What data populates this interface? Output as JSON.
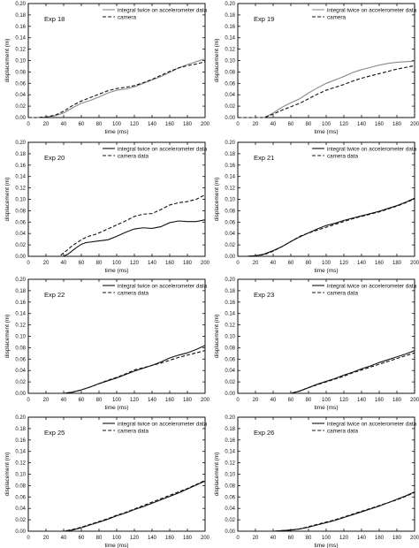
{
  "chart_data": [
    {
      "type": "line",
      "panel_label": "Exp 18",
      "xlabel": "time (ms)",
      "ylabel": "displacement (m)",
      "xlim": [
        0,
        200
      ],
      "ylim": [
        0,
        0.2
      ],
      "xticks": [
        "0",
        "20",
        "40",
        "60",
        "80",
        "100",
        "120",
        "140",
        "160",
        "180",
        "200"
      ],
      "yticks": [
        "0.00",
        "0.02",
        "0.04",
        "0.06",
        "0.08",
        "0.10",
        "0.12",
        "0.14",
        "0.16",
        "0.18",
        "0.20"
      ],
      "legend_position": "top-right",
      "grid": false,
      "series": [
        {
          "name": "integral twice on accelerometer data",
          "style": "solid",
          "color": "#8a8a8a",
          "x": [
            0,
            10,
            20,
            30,
            40,
            50,
            60,
            70,
            80,
            90,
            100,
            110,
            120,
            130,
            140,
            150,
            160,
            170,
            180,
            190,
            200
          ],
          "y": [
            0,
            0,
            0.001,
            0.003,
            0.008,
            0.017,
            0.025,
            0.03,
            0.036,
            0.043,
            0.048,
            0.05,
            0.054,
            0.06,
            0.066,
            0.072,
            0.079,
            0.087,
            0.093,
            0.098,
            0.103
          ]
        },
        {
          "name": "camera",
          "style": "dashed",
          "color": "#111111",
          "x": [
            0,
            10,
            20,
            30,
            40,
            50,
            60,
            70,
            80,
            90,
            100,
            110,
            120,
            130,
            140,
            150,
            160,
            170,
            180,
            190,
            200
          ],
          "y": [
            0,
            0,
            0.001,
            0.004,
            0.011,
            0.021,
            0.029,
            0.035,
            0.041,
            0.047,
            0.051,
            0.053,
            0.056,
            0.061,
            0.067,
            0.074,
            0.081,
            0.087,
            0.091,
            0.094,
            0.098
          ]
        }
      ]
    },
    {
      "type": "line",
      "panel_label": "Exp 19",
      "xlabel": "time (ms)",
      "ylabel": "displacement (m)",
      "xlim": [
        0,
        200
      ],
      "ylim": [
        0,
        0.2
      ],
      "xticks": [
        "0",
        "20",
        "40",
        "60",
        "80",
        "100",
        "120",
        "140",
        "160",
        "180",
        "200"
      ],
      "yticks": [
        "0.00",
        "0.02",
        "0.04",
        "0.06",
        "0.08",
        "0.10",
        "0.12",
        "0.14",
        "0.16",
        "0.18",
        "0.20"
      ],
      "legend_position": "top-right",
      "grid": false,
      "series": [
        {
          "name": "integral twice on accelerometer data",
          "style": "solid",
          "color": "#8a8a8a",
          "x": [
            0,
            10,
            20,
            30,
            40,
            50,
            60,
            70,
            80,
            90,
            100,
            110,
            120,
            130,
            140,
            150,
            160,
            170,
            180,
            190,
            200
          ],
          "y": [
            0,
            0,
            0,
            0,
            0.008,
            0.018,
            0.026,
            0.033,
            0.043,
            0.052,
            0.06,
            0.066,
            0.072,
            0.079,
            0.084,
            0.088,
            0.092,
            0.095,
            0.097,
            0.098,
            0.099
          ]
        },
        {
          "name": "camera",
          "style": "dashed",
          "color": "#111111",
          "x": [
            0,
            10,
            20,
            30,
            40,
            50,
            60,
            70,
            80,
            90,
            100,
            110,
            120,
            130,
            140,
            150,
            160,
            170,
            180,
            190,
            200
          ],
          "y": [
            0,
            0,
            0,
            0,
            0.006,
            0.013,
            0.019,
            0.025,
            0.033,
            0.041,
            0.048,
            0.053,
            0.058,
            0.064,
            0.069,
            0.073,
            0.077,
            0.081,
            0.085,
            0.088,
            0.091
          ]
        }
      ]
    },
    {
      "type": "line",
      "panel_label": "Exp 20",
      "xlabel": "time (ms)",
      "ylabel": "displacement (m)",
      "xlim": [
        0,
        200
      ],
      "ylim": [
        0,
        0.2
      ],
      "xticks": [
        "0",
        "20",
        "40",
        "60",
        "80",
        "100",
        "120",
        "140",
        "160",
        "180",
        "200"
      ],
      "yticks": [
        "0.00",
        "0.02",
        "0.04",
        "0.06",
        "0.08",
        "0.10",
        "0.12",
        "0.14",
        "0.16",
        "0.18",
        "0.20"
      ],
      "legend_position": "top-right",
      "grid": false,
      "series": [
        {
          "name": "integral twice on accelerometer data",
          "style": "solid",
          "color": "#111111",
          "x": [
            0,
            40,
            45,
            50,
            55,
            60,
            65,
            70,
            75,
            80,
            90,
            100,
            110,
            120,
            130,
            140,
            150,
            160,
            170,
            180,
            190,
            200
          ],
          "y": [
            0,
            0,
            0.004,
            0.01,
            0.016,
            0.021,
            0.024,
            0.025,
            0.026,
            0.027,
            0.029,
            0.035,
            0.042,
            0.048,
            0.05,
            0.049,
            0.052,
            0.059,
            0.062,
            0.061,
            0.061,
            0.064
          ]
        },
        {
          "name": "camera data",
          "style": "dashed",
          "color": "#111111",
          "x": [
            0,
            35,
            40,
            45,
            50,
            55,
            60,
            65,
            70,
            75,
            80,
            90,
            100,
            110,
            120,
            130,
            140,
            150,
            160,
            170,
            180,
            190,
            200
          ],
          "y": [
            0,
            0,
            0.006,
            0.012,
            0.019,
            0.024,
            0.029,
            0.033,
            0.036,
            0.038,
            0.041,
            0.048,
            0.055,
            0.062,
            0.07,
            0.074,
            0.075,
            0.082,
            0.09,
            0.094,
            0.096,
            0.1,
            0.108
          ]
        }
      ]
    },
    {
      "type": "line",
      "panel_label": "Exp 21",
      "xlabel": "time (ms)",
      "ylabel": "displacement (m)",
      "xlim": [
        0,
        200
      ],
      "ylim": [
        0,
        0.2
      ],
      "xticks": [
        "0",
        "20",
        "40",
        "60",
        "80",
        "100",
        "120",
        "140",
        "160",
        "180",
        "200"
      ],
      "yticks": [
        "0.00",
        "0.02",
        "0.04",
        "0.06",
        "0.08",
        "0.10",
        "0.12",
        "0.14",
        "0.16",
        "0.18",
        "0.20"
      ],
      "legend_position": "top-right",
      "grid": false,
      "series": [
        {
          "name": "integral twice on accelerometer data",
          "style": "solid",
          "color": "#111111",
          "x": [
            0,
            10,
            20,
            30,
            40,
            50,
            60,
            70,
            80,
            90,
            100,
            110,
            120,
            130,
            140,
            150,
            160,
            170,
            180,
            190,
            200
          ],
          "y": [
            0,
            0,
            0.001,
            0.004,
            0.01,
            0.017,
            0.026,
            0.034,
            0.041,
            0.048,
            0.054,
            0.058,
            0.063,
            0.067,
            0.071,
            0.075,
            0.079,
            0.084,
            0.089,
            0.095,
            0.102
          ]
        },
        {
          "name": "camera data",
          "style": "dashed",
          "color": "#111111",
          "x": [
            0,
            10,
            20,
            30,
            40,
            50,
            60,
            70,
            80,
            90,
            100,
            110,
            120,
            130,
            140,
            150,
            160,
            170,
            180,
            190,
            200
          ],
          "y": [
            0,
            0,
            0.001,
            0.003,
            0.009,
            0.017,
            0.026,
            0.035,
            0.041,
            0.046,
            0.051,
            0.056,
            0.061,
            0.066,
            0.07,
            0.074,
            0.078,
            0.083,
            0.088,
            0.094,
            0.101
          ]
        }
      ]
    },
    {
      "type": "line",
      "panel_label": "Exp 22",
      "xlabel": "time (ms)",
      "ylabel": "displacement (m)",
      "xlim": [
        0,
        200
      ],
      "ylim": [
        0,
        0.2
      ],
      "xticks": [
        "0",
        "20",
        "40",
        "60",
        "80",
        "100",
        "120",
        "140",
        "160",
        "180",
        "200"
      ],
      "yticks": [
        "0.00",
        "0.02",
        "0.04",
        "0.06",
        "0.08",
        "0.10",
        "0.12",
        "0.14",
        "0.16",
        "0.18",
        "0.20"
      ],
      "legend_position": "top-right",
      "grid": false,
      "series": [
        {
          "name": "integral twice on accelerometer data",
          "style": "solid",
          "color": "#111111",
          "x": [
            0,
            40,
            50,
            60,
            70,
            80,
            90,
            100,
            110,
            120,
            130,
            140,
            150,
            160,
            170,
            180,
            190,
            200
          ],
          "y": [
            0,
            0,
            0.002,
            0.006,
            0.011,
            0.017,
            0.022,
            0.027,
            0.033,
            0.039,
            0.044,
            0.049,
            0.055,
            0.062,
            0.067,
            0.071,
            0.077,
            0.084
          ]
        },
        {
          "name": "camera data",
          "style": "dashed",
          "color": "#111111",
          "x": [
            0,
            40,
            50,
            60,
            70,
            80,
            90,
            100,
            110,
            120,
            130,
            140,
            150,
            160,
            170,
            180,
            190,
            200
          ],
          "y": [
            0,
            0,
            0.002,
            0.006,
            0.011,
            0.017,
            0.023,
            0.028,
            0.034,
            0.041,
            0.045,
            0.049,
            0.053,
            0.058,
            0.063,
            0.067,
            0.071,
            0.075
          ]
        }
      ]
    },
    {
      "type": "line",
      "panel_label": "Exp 23",
      "xlabel": "time (ms)",
      "ylabel": "displacement (m)",
      "xlim": [
        0,
        200
      ],
      "ylim": [
        0,
        0.2
      ],
      "xticks": [
        "0",
        "20",
        "40",
        "60",
        "80",
        "100",
        "120",
        "140",
        "160",
        "180",
        "200"
      ],
      "yticks": [
        "0.00",
        "0.02",
        "0.04",
        "0.06",
        "0.08",
        "0.10",
        "0.12",
        "0.14",
        "0.16",
        "0.18",
        "0.20"
      ],
      "legend_position": "top-right",
      "grid": false,
      "series": [
        {
          "name": "integral twice on accelerometer data",
          "style": "solid",
          "color": "#111111",
          "x": [
            0,
            60,
            70,
            80,
            90,
            100,
            110,
            120,
            130,
            140,
            150,
            160,
            170,
            180,
            190,
            200
          ],
          "y": [
            0,
            0,
            0.004,
            0.01,
            0.016,
            0.021,
            0.026,
            0.032,
            0.037,
            0.043,
            0.048,
            0.054,
            0.059,
            0.064,
            0.069,
            0.075
          ]
        },
        {
          "name": "camera data",
          "style": "dashed",
          "color": "#111111",
          "x": [
            0,
            60,
            70,
            80,
            90,
            100,
            110,
            120,
            130,
            140,
            150,
            160,
            170,
            180,
            190,
            200
          ],
          "y": [
            0,
            0,
            0.004,
            0.01,
            0.015,
            0.02,
            0.025,
            0.03,
            0.036,
            0.041,
            0.046,
            0.051,
            0.056,
            0.061,
            0.066,
            0.071
          ]
        }
      ]
    },
    {
      "type": "line",
      "panel_label": "Exp 25",
      "xlabel": "time (ms)",
      "ylabel": "displacement (m)",
      "xlim": [
        0,
        200
      ],
      "ylim": [
        0,
        0.2
      ],
      "xticks": [
        "0",
        "20",
        "40",
        "60",
        "80",
        "100",
        "120",
        "140",
        "160",
        "180",
        "200"
      ],
      "yticks": [
        "0.00",
        "0.02",
        "0.04",
        "0.06",
        "0.08",
        "0.10",
        "0.12",
        "0.14",
        "0.16",
        "0.18",
        "0.20"
      ],
      "legend_position": "top-right",
      "grid": false,
      "series": [
        {
          "name": "integral twice on accelerometer data",
          "style": "solid",
          "color": "#111111",
          "x": [
            0,
            40,
            50,
            60,
            70,
            80,
            90,
            100,
            110,
            120,
            130,
            140,
            150,
            160,
            170,
            180,
            190,
            200
          ],
          "y": [
            0,
            0,
            0.002,
            0.006,
            0.011,
            0.016,
            0.021,
            0.027,
            0.032,
            0.038,
            0.043,
            0.049,
            0.055,
            0.061,
            0.067,
            0.074,
            0.081,
            0.088
          ]
        },
        {
          "name": "camera data",
          "style": "dashed",
          "color": "#111111",
          "x": [
            0,
            40,
            50,
            60,
            70,
            80,
            90,
            100,
            110,
            120,
            130,
            140,
            150,
            160,
            170,
            180,
            190,
            200
          ],
          "y": [
            0,
            0,
            0.003,
            0.007,
            0.012,
            0.017,
            0.022,
            0.028,
            0.033,
            0.039,
            0.045,
            0.051,
            0.057,
            0.063,
            0.069,
            0.075,
            0.082,
            0.089
          ]
        }
      ]
    },
    {
      "type": "line",
      "panel_label": "Exp 26",
      "xlabel": "time (ms)",
      "ylabel": "displacement (m)",
      "xlim": [
        0,
        200
      ],
      "ylim": [
        0,
        0.2
      ],
      "xticks": [
        "0",
        "20",
        "40",
        "60",
        "80",
        "100",
        "120",
        "140",
        "160",
        "180",
        "200"
      ],
      "yticks": [
        "0.00",
        "0.02",
        "0.04",
        "0.06",
        "0.08",
        "0.10",
        "0.12",
        "0.14",
        "0.16",
        "0.18",
        "0.20"
      ],
      "legend_position": "top-right",
      "grid": false,
      "series": [
        {
          "name": "integral twice on accelerometer data",
          "style": "solid",
          "color": "#111111",
          "x": [
            0,
            40,
            50,
            60,
            70,
            80,
            90,
            100,
            110,
            120,
            130,
            140,
            150,
            160,
            170,
            180,
            190,
            200
          ],
          "y": [
            0,
            0,
            0.001,
            0.002,
            0.004,
            0.007,
            0.011,
            0.015,
            0.019,
            0.024,
            0.029,
            0.034,
            0.039,
            0.044,
            0.05,
            0.056,
            0.062,
            0.069
          ]
        },
        {
          "name": "camera data",
          "style": "dashed",
          "color": "#111111",
          "x": [
            0,
            40,
            50,
            60,
            70,
            80,
            90,
            100,
            110,
            120,
            130,
            140,
            150,
            160,
            170,
            180,
            190,
            200
          ],
          "y": [
            0,
            0,
            0.001,
            0.002,
            0.004,
            0.008,
            0.012,
            0.016,
            0.02,
            0.025,
            0.03,
            0.035,
            0.04,
            0.045,
            0.05,
            0.055,
            0.061,
            0.068
          ]
        }
      ]
    }
  ]
}
